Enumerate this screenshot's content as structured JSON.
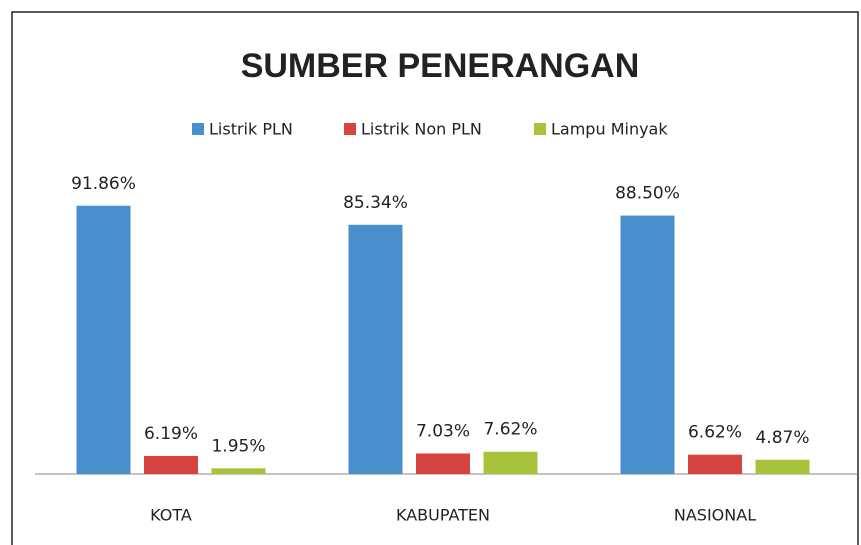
{
  "chart_data": {
    "type": "bar",
    "title": "SUMBER PENERANGAN",
    "categories": [
      "KOTA",
      "KABUPATEN",
      "NASIONAL"
    ],
    "series": [
      {
        "name": "Listrik PLN",
        "color": "#4a8fcd",
        "values": [
          91.86,
          85.34,
          88.5
        ],
        "value_labels": [
          "91.86%",
          "85.34%",
          "88.50%"
        ]
      },
      {
        "name": "Listrik Non PLN",
        "color": "#d5443e",
        "values": [
          6.19,
          7.03,
          6.62
        ],
        "value_labels": [
          "6.19%",
          "7.03%",
          "6.62%"
        ]
      },
      {
        "name": "Lampu Minyak",
        "color": "#a6c33b",
        "values": [
          1.95,
          7.62,
          4.87
        ],
        "value_labels": [
          "1.95%",
          "7.62%",
          "4.87%"
        ]
      }
    ],
    "legend": "top"
  }
}
